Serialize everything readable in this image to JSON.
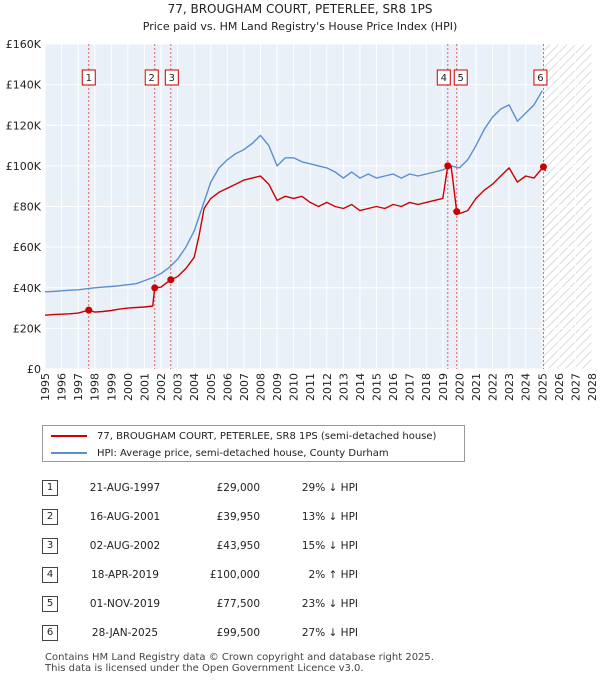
{
  "chart_data": {
    "type": "line",
    "title": "77, BROUGHAM COURT, PETERLEE, SR8 1PS",
    "subtitle": "Price paid vs. HM Land Registry's House Price Index (HPI)",
    "xlabel": "",
    "ylabel": "",
    "xlim": [
      1995,
      2028
    ],
    "ylim": [
      0,
      160000
    ],
    "y_ticks": [
      0,
      20000,
      40000,
      60000,
      80000,
      100000,
      120000,
      140000,
      160000
    ],
    "y_tick_labels": [
      "£0",
      "£20K",
      "£40K",
      "£60K",
      "£80K",
      "£100K",
      "£120K",
      "£140K",
      "£160K"
    ],
    "x_ticks": [
      1995,
      1996,
      1997,
      1998,
      1999,
      2000,
      2001,
      2002,
      2003,
      2004,
      2005,
      2006,
      2007,
      2008,
      2009,
      2010,
      2011,
      2012,
      2013,
      2014,
      2015,
      2016,
      2017,
      2018,
      2019,
      2020,
      2021,
      2022,
      2023,
      2024,
      2025,
      2026,
      2027,
      2028
    ],
    "x_tick_labels": [
      "1995",
      "1996",
      "1997",
      "1998",
      "1999",
      "2000",
      "2001",
      "2002",
      "2003",
      "2004",
      "2005",
      "2006",
      "2007",
      "2008",
      "2009",
      "2010",
      "2011",
      "2012",
      "2013",
      "2014",
      "2015",
      "2016",
      "2017",
      "2018",
      "2019",
      "2020",
      "2021",
      "2022",
      "2023",
      "2024",
      "2025",
      "2026",
      "2027",
      "2028"
    ],
    "grid": true,
    "forecast_start": 2025.1,
    "series": [
      {
        "name": "77, BROUGHAM COURT, PETERLEE, SR8 1PS (semi-detached house)",
        "color": "#cc0000",
        "x": [
          1995.0,
          1995.5,
          1996.0,
          1996.5,
          1997.0,
          1997.64,
          1998.0,
          1998.5,
          1999.0,
          1999.5,
          2000.0,
          2000.5,
          2001.0,
          2001.5,
          2001.62,
          2002.0,
          2002.59,
          2003.0,
          2003.5,
          2004.0,
          2004.3,
          2004.6,
          2005.0,
          2005.5,
          2006.0,
          2006.5,
          2007.0,
          2007.5,
          2008.0,
          2008.5,
          2009.0,
          2009.5,
          2010.0,
          2010.5,
          2011.0,
          2011.5,
          2012.0,
          2012.5,
          2013.0,
          2013.5,
          2014.0,
          2014.5,
          2015.0,
          2015.5,
          2016.0,
          2016.5,
          2017.0,
          2017.5,
          2018.0,
          2018.5,
          2019.0,
          2019.3,
          2019.5,
          2019.84,
          2020.0,
          2020.5,
          2021.0,
          2021.5,
          2022.0,
          2022.5,
          2023.0,
          2023.5,
          2024.0,
          2024.5,
          2024.8,
          2025.07,
          2025.2
        ],
        "values": [
          26500,
          26800,
          27000,
          27200,
          27500,
          29000,
          28000,
          28300,
          28800,
          29500,
          30000,
          30300,
          30500,
          31000,
          39950,
          40300,
          43950,
          45500,
          49500,
          55000,
          66000,
          79000,
          84000,
          87000,
          89000,
          91000,
          93000,
          94000,
          95000,
          91000,
          83000,
          85000,
          84000,
          85000,
          82000,
          80000,
          82000,
          80000,
          79000,
          81000,
          78000,
          79000,
          80000,
          79000,
          81000,
          80000,
          82000,
          81000,
          82000,
          83000,
          84000,
          100000,
          100000,
          77500,
          76500,
          78000,
          84000,
          88000,
          91000,
          95000,
          99000,
          92000,
          95000,
          94000,
          97000,
          99500,
          97500
        ]
      },
      {
        "name": "HPI: Average price, semi-detached house, County Durham",
        "color": "#5a8fd0",
        "x": [
          1995.0,
          1995.5,
          1996.0,
          1996.5,
          1997.0,
          1997.5,
          1998.0,
          1998.5,
          1999.0,
          1999.5,
          2000.0,
          2000.5,
          2001.0,
          2001.5,
          2002.0,
          2002.5,
          2003.0,
          2003.5,
          2004.0,
          2004.5,
          2005.0,
          2005.5,
          2006.0,
          2006.5,
          2007.0,
          2007.5,
          2008.0,
          2008.5,
          2009.0,
          2009.5,
          2010.0,
          2010.5,
          2011.0,
          2011.5,
          2012.0,
          2012.5,
          2013.0,
          2013.5,
          2014.0,
          2014.5,
          2015.0,
          2015.5,
          2016.0,
          2016.5,
          2017.0,
          2017.5,
          2018.0,
          2018.5,
          2019.0,
          2019.5,
          2020.0,
          2020.5,
          2021.0,
          2021.5,
          2022.0,
          2022.5,
          2023.0,
          2023.5,
          2024.0,
          2024.5,
          2025.0
        ],
        "values": [
          38000,
          38200,
          38500,
          38800,
          39000,
          39500,
          40000,
          40300,
          40600,
          41000,
          41500,
          42000,
          43500,
          45000,
          47000,
          50000,
          54000,
          60000,
          68000,
          80000,
          92000,
          99000,
          103000,
          106000,
          108000,
          111000,
          115000,
          110000,
          100000,
          104000,
          104000,
          102000,
          101000,
          100000,
          99000,
          97000,
          94000,
          97000,
          94000,
          96000,
          94000,
          95000,
          96000,
          94000,
          96000,
          95000,
          96000,
          97000,
          98000,
          100000,
          99000,
          103000,
          110000,
          118000,
          124000,
          128000,
          130000,
          122000,
          126000,
          130000,
          137000
        ]
      }
    ],
    "sales": [
      {
        "num": "1",
        "x": 1997.64,
        "value": 29000
      },
      {
        "num": "2",
        "x": 2001.62,
        "value": 39950
      },
      {
        "num": "3",
        "x": 2002.59,
        "value": 43950
      },
      {
        "num": "4",
        "x": 2019.3,
        "value": 100000
      },
      {
        "num": "5",
        "x": 2019.84,
        "value": 77500
      },
      {
        "num": "6",
        "x": 2025.07,
        "value": 99500
      }
    ]
  },
  "legend": {
    "property_label": "77, BROUGHAM COURT, PETERLEE, SR8 1PS (semi-detached house)",
    "hpi_label": "HPI: Average price, semi-detached house, County Durham"
  },
  "transactions": [
    {
      "num": "1",
      "date": "21-AUG-1997",
      "price": "£29,000",
      "hpi": "29% ↓ HPI"
    },
    {
      "num": "2",
      "date": "16-AUG-2001",
      "price": "£39,950",
      "hpi": "13% ↓ HPI"
    },
    {
      "num": "3",
      "date": "02-AUG-2002",
      "price": "£43,950",
      "hpi": "15% ↓ HPI"
    },
    {
      "num": "4",
      "date": "18-APR-2019",
      "price": "£100,000",
      "hpi": "2% ↑ HPI"
    },
    {
      "num": "5",
      "date": "01-NOV-2019",
      "price": "£77,500",
      "hpi": "23% ↓ HPI"
    },
    {
      "num": "6",
      "date": "28-JAN-2025",
      "price": "£99,500",
      "hpi": "27% ↓ HPI"
    }
  ],
  "footer": {
    "line1": "Contains HM Land Registry data © Crown copyright and database right 2025.",
    "line2": "This data is licensed under the Open Government Licence v3.0."
  }
}
